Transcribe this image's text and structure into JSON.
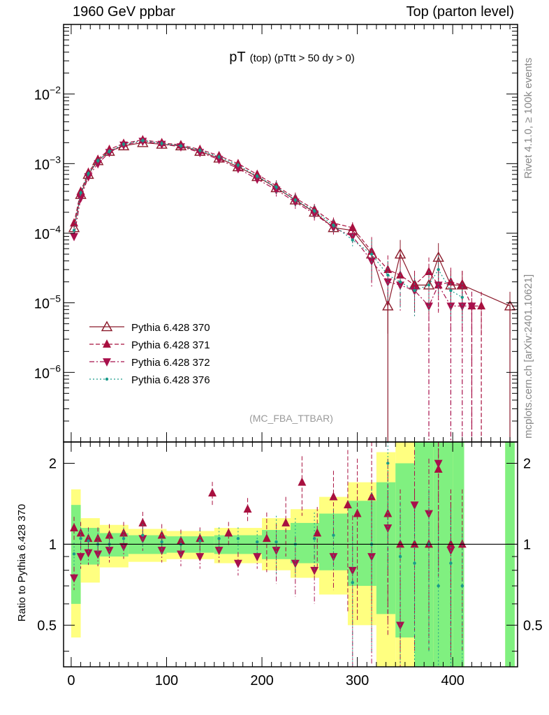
{
  "header": {
    "left": "1960 GeV ppbar",
    "right": "Top (parton level)"
  },
  "side_labels": {
    "rivet": "Rivet 4.1.0, ≥ 100k events",
    "mcplots": "mcplots.cern.ch [arXiv:2401.10621]"
  },
  "chart_data": {
    "type": "line",
    "title_main": "pT",
    "title_small": "(top)  (pTtt > 50 dy > 0)",
    "analysis_tag": "(MC_FBA_TTBAR)",
    "xlabel": "",
    "ylabel_ratio": "Ratio to Pythia 6.428 370",
    "xlim": [
      -8,
      468
    ],
    "ylim_main": [
      1e-07,
      0.1
    ],
    "ylim_ratio": [
      0.35,
      2.4
    ],
    "y_scale": "log",
    "x_ticks": [
      0,
      100,
      200,
      300,
      400
    ],
    "x_tick_labels": [
      "0",
      "100",
      "200",
      "300",
      "400"
    ],
    "y_ticks_main": [
      1e-06,
      1e-05,
      0.0001,
      0.001,
      0.01
    ],
    "y_tick_exponents": [
      "−6",
      "−5",
      "−4",
      "−3",
      "−2"
    ],
    "y_tick_base": "10",
    "y_ticks_ratio": [
      0.5,
      1,
      2
    ],
    "y_tick_labels_ratio": [
      "0.5",
      "1",
      "2"
    ],
    "legend_position": "lower-left",
    "colors": {
      "s370": "#8b1a2b",
      "s371": "#a8103f",
      "s372": "#a8104c",
      "s376": "#1a9a8a",
      "band_yellow": "#ffff80",
      "band_green": "#80f080"
    },
    "series": [
      {
        "name": "Pythia 6.428 370",
        "marker": "triangle-up-open",
        "line": "solid",
        "x": [
          3,
          10,
          18,
          28,
          40,
          55,
          75,
          95,
          115,
          135,
          155,
          175,
          195,
          215,
          235,
          255,
          275,
          295,
          315,
          332,
          345,
          360,
          375,
          385,
          398,
          410,
          460
        ],
        "y": [
          0.00012,
          0.00036,
          0.0007,
          0.0011,
          0.0015,
          0.0018,
          0.002,
          0.0019,
          0.0018,
          0.0015,
          0.0012,
          0.0009,
          0.00065,
          0.00045,
          0.0003,
          0.0002,
          0.00012,
          0.00011,
          5e-05,
          9e-06,
          5e-05,
          1.8e-05,
          1.8e-05,
          4.5e-05,
          1.8e-05,
          1.8e-05,
          9e-06
        ]
      },
      {
        "name": "Pythia 6.428 371",
        "marker": "triangle-up-filled",
        "line": "dashed",
        "x": [
          3,
          10,
          18,
          28,
          40,
          55,
          75,
          95,
          115,
          135,
          155,
          175,
          195,
          215,
          235,
          255,
          275,
          295,
          315,
          332,
          345,
          360,
          375,
          385,
          398,
          410,
          420,
          430
        ],
        "y": [
          0.00014,
          0.0004,
          0.00075,
          0.00115,
          0.0016,
          0.00195,
          0.0022,
          0.002,
          0.00185,
          0.0016,
          0.0013,
          0.001,
          0.0007,
          0.00048,
          0.00032,
          0.00022,
          0.00014,
          0.00012,
          5.5e-05,
          3e-05,
          2.5e-05,
          1.8e-05,
          2.8e-05,
          1.8e-05,
          2e-05,
          1.8e-05,
          9e-06,
          9e-06
        ]
      },
      {
        "name": "Pythia 6.428 372",
        "marker": "triangle-down-filled",
        "line": "dashdot",
        "x": [
          3,
          10,
          18,
          28,
          40,
          55,
          75,
          95,
          115,
          135,
          155,
          175,
          195,
          215,
          235,
          255,
          275,
          295,
          315,
          332,
          345,
          360,
          375,
          385,
          398,
          410,
          420
        ],
        "y": [
          9e-05,
          0.00032,
          0.00065,
          0.001,
          0.00145,
          0.00185,
          0.0021,
          0.0019,
          0.00175,
          0.00145,
          0.00115,
          0.00085,
          0.0006,
          0.00042,
          0.00028,
          0.00019,
          0.00012,
          9e-05,
          4e-05,
          2e-05,
          1.8e-05,
          1.5e-05,
          9e-06,
          1.8e-05,
          9e-06,
          9e-06,
          9e-06
        ]
      },
      {
        "name": "Pythia 6.428 376",
        "marker": "dot",
        "line": "dotted",
        "x": [
          3,
          10,
          18,
          28,
          40,
          55,
          75,
          95,
          115,
          135,
          155,
          175,
          195,
          215,
          235,
          255,
          275,
          295,
          315,
          332,
          345,
          360,
          375,
          385,
          398,
          410
        ],
        "y": [
          0.00011,
          0.00038,
          0.00072,
          0.0011,
          0.0015,
          0.0019,
          0.00215,
          0.00195,
          0.0018,
          0.00155,
          0.00125,
          0.00095,
          0.00066,
          0.00046,
          0.0003,
          0.00021,
          0.00013,
          8e-05,
          5e-05,
          2.5e-05,
          2e-05,
          1.5e-05,
          1.8e-05,
          3e-05,
          1.5e-05,
          1.2e-05
        ]
      }
    ],
    "ratio_series": [
      {
        "name": "Pythia 6.428 371",
        "x": [
          3,
          10,
          18,
          28,
          40,
          55,
          75,
          95,
          115,
          135,
          148,
          165,
          185,
          205,
          225,
          242,
          258,
          275,
          290,
          300,
          315,
          332,
          345,
          360,
          375,
          385,
          398,
          410
        ],
        "y": [
          1.15,
          1.1,
          1.05,
          1.05,
          1.08,
          1.1,
          1.2,
          1.08,
          1.03,
          1.05,
          1.55,
          1.1,
          1.35,
          1.05,
          1.2,
          1.7,
          1.1,
          1.5,
          1.4,
          1.3,
          1.5,
          1.3,
          1.0,
          1.0,
          1.0,
          1.9,
          1.0,
          1.0
        ]
      },
      {
        "name": "Pythia 6.428 372",
        "x": [
          3,
          10,
          18,
          28,
          40,
          55,
          75,
          95,
          115,
          135,
          155,
          175,
          195,
          215,
          235,
          255,
          275,
          295,
          315,
          332,
          345,
          360,
          375,
          385,
          398
        ],
        "y": [
          0.75,
          0.9,
          0.93,
          0.92,
          0.95,
          0.98,
          1.05,
          0.95,
          0.92,
          0.9,
          0.95,
          0.85,
          0.9,
          0.95,
          0.85,
          0.8,
          0.9,
          0.8,
          0.9,
          1.15,
          0.5,
          1.4,
          1.3,
          2.0,
          0.95
        ]
      },
      {
        "name": "Pythia 6.428 376",
        "x": [
          3,
          10,
          18,
          28,
          40,
          55,
          75,
          95,
          115,
          135,
          155,
          175,
          195,
          215,
          235,
          255,
          275,
          295,
          315,
          332,
          345,
          360,
          375,
          385,
          398,
          410
        ],
        "y": [
          0.92,
          1.05,
          1.03,
          1.0,
          1.0,
          1.05,
          1.08,
          1.02,
          1.0,
          1.03,
          1.05,
          1.05,
          1.02,
          1.02,
          1.0,
          1.05,
          1.08,
          0.72,
          1.0,
          2.0,
          0.9,
          0.85,
          1.0,
          0.7,
          0.85,
          0.7
        ]
      }
    ],
    "ratio_bands": {
      "x": [
        0,
        10,
        30,
        60,
        100,
        150,
        200,
        230,
        260,
        290,
        320,
        340,
        360,
        380,
        400,
        412,
        455,
        465
      ],
      "yellow_lo": [
        0.45,
        0.72,
        0.82,
        0.86,
        0.88,
        0.85,
        0.8,
        0.75,
        0.65,
        0.5,
        0.35,
        0.35,
        0.35,
        0.35,
        0.35,
        0.35,
        0.35,
        0.35
      ],
      "yellow_hi": [
        1.6,
        1.25,
        1.18,
        1.14,
        1.12,
        1.15,
        1.25,
        1.35,
        1.5,
        1.7,
        2.2,
        2.4,
        2.4,
        2.4,
        2.4,
        2.4,
        2.4,
        2.4
      ],
      "green_lo": [
        0.6,
        0.84,
        0.9,
        0.92,
        0.93,
        0.92,
        0.88,
        0.85,
        0.8,
        0.7,
        0.55,
        0.45,
        0.35,
        0.35,
        0.35,
        0.35,
        0.35,
        0.35
      ],
      "green_hi": [
        1.4,
        1.15,
        1.1,
        1.08,
        1.07,
        1.08,
        1.13,
        1.2,
        1.3,
        1.45,
        1.7,
        2.0,
        2.4,
        2.4,
        2.4,
        2.4,
        2.4,
        2.4
      ]
    }
  }
}
